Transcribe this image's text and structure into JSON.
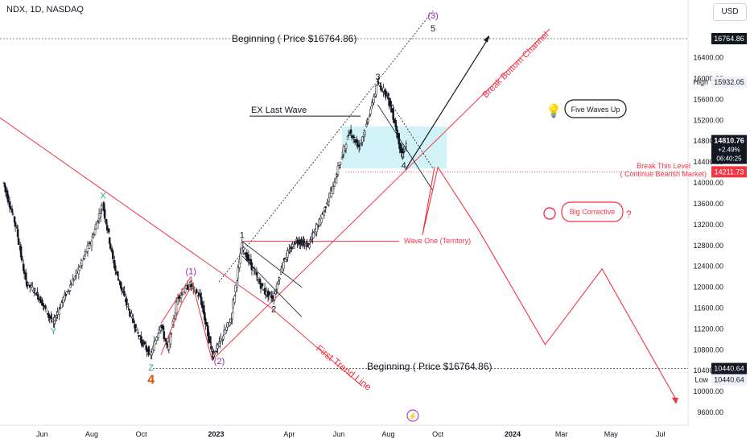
{
  "header": {
    "title": "NDX, 1D, NASDAQ",
    "currency_button": "USD"
  },
  "chart_data": {
    "type": "candlestick",
    "symbol": "NDX",
    "interval": "1D",
    "exchange": "NASDAQ",
    "ylim": [
      9400,
      17300
    ],
    "x_ticks": [
      "Jun",
      "Aug",
      "Oct",
      "2023",
      "Apr",
      "Jun",
      "Aug",
      "Oct",
      "2024",
      "Mar",
      "May",
      "Jul"
    ],
    "y_ticks": [
      9600,
      10000,
      10400,
      10800,
      11200,
      11600,
      12000,
      12400,
      12800,
      13200,
      13600,
      14000,
      14400,
      14800,
      15200,
      15600,
      16000,
      16400,
      16764.86
    ],
    "price_labels": {
      "top": "16764.86",
      "high_label": "High",
      "high_value": "15932.05",
      "current": "14810.76",
      "change": "+2.49%",
      "countdown": "06:40:25",
      "break_level": "14211.73",
      "bottom": "10440.64",
      "low_label": "Low",
      "low_value": "10440.64"
    },
    "series_price": [
      [
        "2022-04-15",
        14000
      ],
      [
        "2022-05-01",
        13100
      ],
      [
        "2022-05-12",
        12100
      ],
      [
        "2022-05-25",
        11900
      ],
      [
        "2022-06-15",
        11300
      ],
      [
        "2022-06-25",
        11700
      ],
      [
        "2022-07-15",
        12300
      ],
      [
        "2022-08-01",
        12900
      ],
      [
        "2022-08-15",
        13600
      ],
      [
        "2022-08-29",
        12400
      ],
      [
        "2022-09-15",
        11600
      ],
      [
        "2022-09-30",
        11000
      ],
      [
        "2022-10-13",
        10690
      ],
      [
        "2022-10-25",
        11300
      ],
      [
        "2022-11-03",
        10800
      ],
      [
        "2022-11-15",
        11800
      ],
      [
        "2022-11-30",
        12050
      ],
      [
        "2022-12-13",
        11800
      ],
      [
        "2022-12-28",
        10700
      ],
      [
        "2023-01-05",
        10900
      ],
      [
        "2023-01-20",
        11400
      ],
      [
        "2023-02-02",
        12800
      ],
      [
        "2023-02-20",
        12200
      ],
      [
        "2023-03-02",
        11900
      ],
      [
        "2023-03-13",
        11800
      ],
      [
        "2023-03-25",
        12500
      ],
      [
        "2023-04-10",
        12900
      ],
      [
        "2023-04-25",
        12800
      ],
      [
        "2023-05-10",
        13300
      ],
      [
        "2023-05-25",
        13900
      ],
      [
        "2023-06-05",
        14500
      ],
      [
        "2023-06-15",
        15000
      ],
      [
        "2023-06-26",
        14700
      ],
      [
        "2023-07-05",
        15100
      ],
      [
        "2023-07-19",
        15900
      ],
      [
        "2023-07-31",
        15700
      ],
      [
        "2023-08-10",
        15100
      ],
      [
        "2023-08-18",
        14500
      ],
      [
        "2023-08-25",
        14800
      ]
    ],
    "projection": [
      [
        "2023-08-25",
        14211.73
      ],
      [
        "2023-09-12",
        13000
      ],
      [
        "2023-10-01",
        14300
      ],
      [
        "2023-11-20",
        13100
      ],
      [
        "2024-02-10",
        10900
      ],
      [
        "2024-04-20",
        12350
      ],
      [
        "2024-07-20",
        9850
      ]
    ],
    "wave_labels": [
      {
        "text": "X",
        "date": "2022-08-15",
        "price": 13700,
        "color": "#26a69a"
      },
      {
        "text": "Y",
        "date": "2022-06-15",
        "price": 11100,
        "color": "#26a69a"
      },
      {
        "text": "Z",
        "date": "2022-10-13",
        "price": 10400,
        "color": "#26a69a"
      },
      {
        "text": "4",
        "date": "2022-10-13",
        "price": 10150,
        "color": "#e65100"
      },
      {
        "text": "(1)",
        "date": "2022-12-01",
        "price": 12250,
        "color": "#9c27b0"
      },
      {
        "text": "(2)",
        "date": "2023-01-05",
        "price": 10530,
        "color": "#9c27b0"
      },
      {
        "text": "1",
        "date": "2023-02-02",
        "price": 12940,
        "color": "#131722"
      },
      {
        "text": "2",
        "date": "2023-03-13",
        "price": 11520,
        "color": "#131722"
      },
      {
        "text": "3",
        "date": "2023-07-19",
        "price": 15980,
        "color": "#131722"
      },
      {
        "text": "4",
        "date": "2023-08-20",
        "price": 14280,
        "color": "#131722"
      },
      {
        "text": "5",
        "date": "2023-09-25",
        "price": 16900,
        "color": "#131722"
      },
      {
        "text": "(3)",
        "date": "2023-09-25",
        "price": 17150,
        "color": "#9c27b0"
      }
    ],
    "annotations": {
      "beginning_top": "Beginning ( Price $16764.86)",
      "beginning_bottom": "Beginning ( Price $16764.86)",
      "ex_last_wave": "EX Last Wave",
      "break_this_level": "Break This Level",
      "continue_bearish": "( Continue Bearish Market)",
      "wave_one_territory": "Wave One (Territory)",
      "first_trend_line": "First Trend Line",
      "break_bottom_channel": "Break Bottom Channel",
      "five_waves_up": "Five Waves Up",
      "big_corrective": "Big Corrective",
      "question_mark": "?"
    }
  }
}
